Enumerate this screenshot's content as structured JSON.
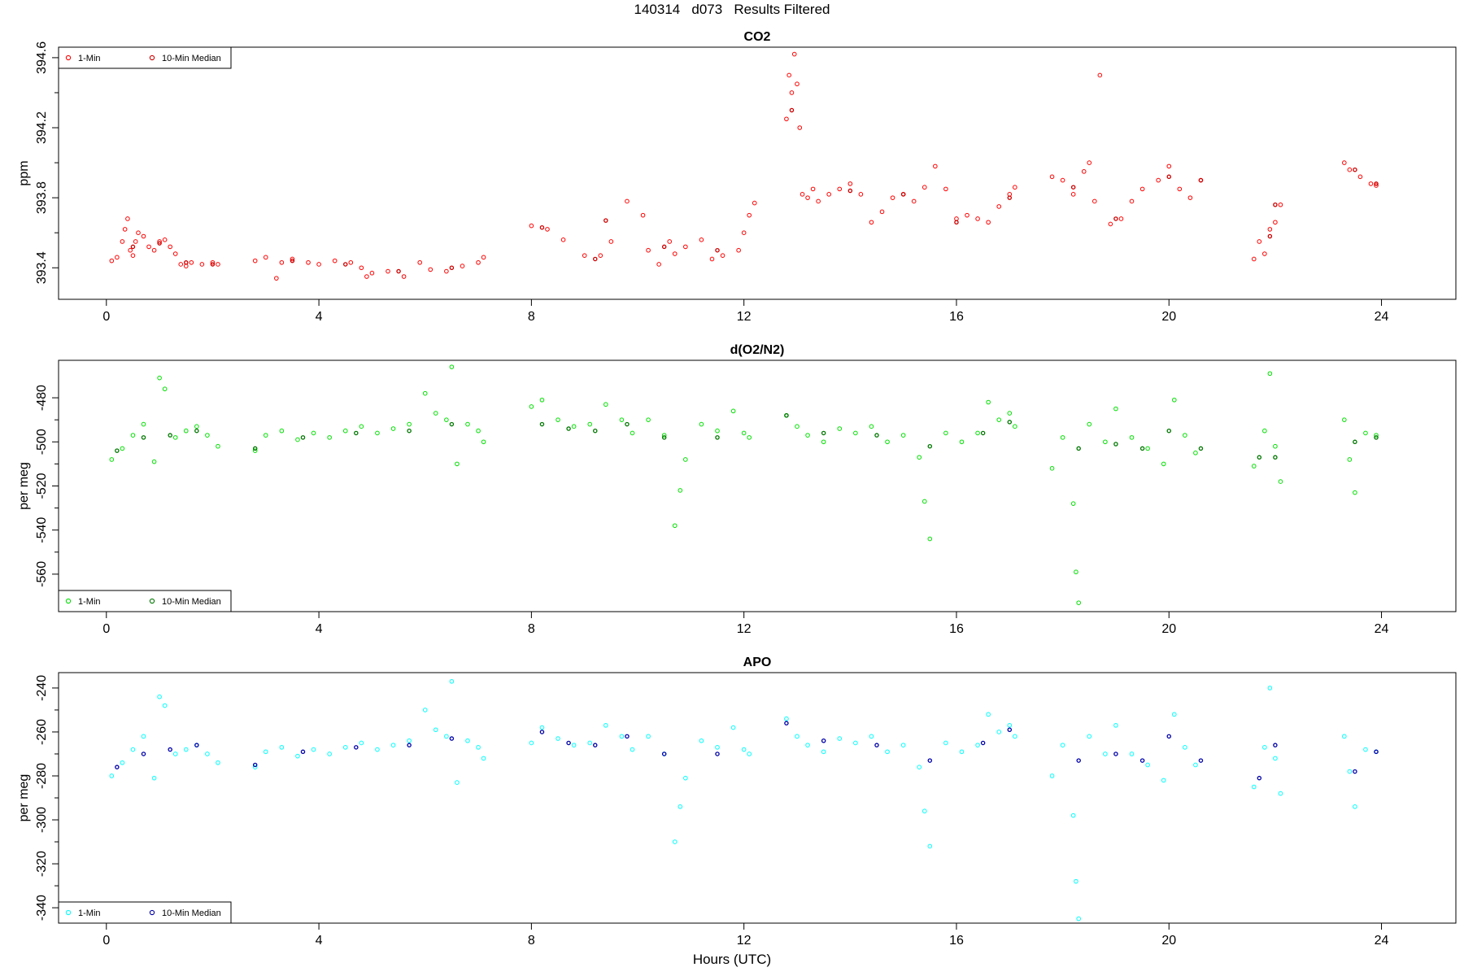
{
  "figure": {
    "title": "140314   d073   Results Filtered",
    "xlabel": "Hours (UTC)"
  },
  "chart_data": [
    {
      "type": "scatter",
      "title": "CO2",
      "ylabel": "ppm",
      "xlim": [
        -0.9,
        25.4
      ],
      "ylim": [
        393.22,
        394.66
      ],
      "xticks": [
        0,
        4,
        8,
        12,
        16,
        20,
        24
      ],
      "yticks": [
        393.4,
        393.8,
        394.2,
        394.6
      ],
      "ytick_labels": [
        "393.4",
        "393.8",
        "394.2",
        "394.6"
      ],
      "legend": {
        "position": "top-left",
        "entries": [
          "1-Min",
          "10-Min Median"
        ]
      },
      "series": [
        {
          "name": "1-Min",
          "color": "#ff0000",
          "x": [
            0.1,
            0.2,
            0.3,
            0.35,
            0.4,
            0.45,
            0.5,
            0.55,
            0.6,
            0.7,
            0.8,
            0.9,
            1.0,
            1.1,
            1.2,
            1.3,
            1.4,
            1.5,
            1.6,
            1.8,
            2.0,
            2.1,
            2.8,
            3.0,
            3.2,
            3.3,
            3.5,
            3.8,
            4.0,
            4.3,
            4.6,
            4.8,
            4.9,
            5.0,
            5.3,
            5.6,
            5.9,
            6.1,
            6.4,
            6.7,
            7.0,
            7.1,
            8.0,
            8.3,
            8.6,
            9.0,
            9.3,
            9.5,
            9.8,
            10.1,
            10.2,
            10.4,
            10.6,
            10.7,
            10.9,
            11.2,
            11.4,
            11.6,
            11.9,
            12.0,
            12.1,
            12.2,
            12.8,
            12.85,
            12.9,
            12.95,
            13.0,
            13.05,
            13.1,
            13.2,
            13.3,
            13.4,
            13.6,
            13.8,
            14.0,
            14.2,
            14.4,
            14.6,
            14.8,
            15.0,
            15.2,
            15.4,
            15.6,
            15.8,
            16.0,
            16.2,
            16.4,
            16.6,
            16.8,
            17.0,
            17.1,
            17.8,
            18.0,
            18.2,
            18.4,
            18.5,
            18.6,
            18.7,
            18.9,
            19.1,
            19.3,
            19.5,
            19.8,
            20.0,
            20.2,
            20.4,
            20.6,
            21.6,
            21.7,
            21.8,
            21.9,
            22.0,
            22.1,
            23.3,
            23.4,
            23.6,
            23.8,
            23.9
          ],
          "y": [
            393.44,
            393.46,
            393.55,
            393.62,
            393.68,
            393.5,
            393.47,
            393.55,
            393.6,
            393.58,
            393.52,
            393.5,
            393.55,
            393.56,
            393.52,
            393.48,
            393.42,
            393.41,
            393.43,
            393.42,
            393.43,
            393.42,
            393.44,
            393.46,
            393.34,
            393.43,
            393.45,
            393.43,
            393.42,
            393.44,
            393.43,
            393.4,
            393.35,
            393.37,
            393.38,
            393.35,
            393.43,
            393.39,
            393.38,
            393.41,
            393.43,
            393.46,
            393.64,
            393.62,
            393.56,
            393.47,
            393.47,
            393.55,
            393.78,
            393.7,
            393.5,
            393.42,
            393.55,
            393.48,
            393.52,
            393.56,
            393.45,
            393.47,
            393.5,
            393.6,
            393.7,
            393.77,
            394.25,
            394.5,
            394.4,
            394.62,
            394.45,
            394.2,
            393.82,
            393.8,
            393.85,
            393.78,
            393.82,
            393.85,
            393.88,
            393.82,
            393.66,
            393.72,
            393.8,
            393.82,
            393.78,
            393.86,
            393.98,
            393.85,
            393.68,
            393.7,
            393.68,
            393.66,
            393.75,
            393.82,
            393.86,
            393.92,
            393.9,
            393.82,
            393.95,
            394.0,
            393.78,
            394.5,
            393.65,
            393.68,
            393.78,
            393.85,
            393.9,
            393.98,
            393.85,
            393.8,
            393.9,
            393.45,
            393.55,
            393.48,
            393.62,
            393.66,
            393.76,
            394.0,
            393.96,
            393.92,
            393.88,
            393.87
          ]
        },
        {
          "name": "10-Min Median",
          "color": "#cc0000",
          "x": [
            0.5,
            1.0,
            1.5,
            2.0,
            3.5,
            4.5,
            5.5,
            6.5,
            8.2,
            9.2,
            9.4,
            10.5,
            11.5,
            12.9,
            14.0,
            15.0,
            16.0,
            17.0,
            18.2,
            19.0,
            20.0,
            20.6,
            21.9,
            22.0,
            23.5,
            23.9
          ],
          "y": [
            393.52,
            393.54,
            393.43,
            393.42,
            393.44,
            393.42,
            393.38,
            393.4,
            393.63,
            393.45,
            393.67,
            393.52,
            393.5,
            394.3,
            393.84,
            393.82,
            393.66,
            393.8,
            393.86,
            393.68,
            393.92,
            393.9,
            393.58,
            393.76,
            393.96,
            393.88
          ]
        }
      ]
    },
    {
      "type": "scatter",
      "title": "d(O2/N2)",
      "ylabel": "per meg",
      "xlim": [
        -0.9,
        25.4
      ],
      "ylim": [
        -577,
        -463
      ],
      "xticks": [
        0,
        4,
        8,
        12,
        16,
        20,
        24
      ],
      "yticks": [
        -560,
        -540,
        -520,
        -500,
        -480
      ],
      "ytick_labels": [
        "-560",
        "-540",
        "-520",
        "-500",
        "-480"
      ],
      "legend": {
        "position": "bottom-left",
        "entries": [
          "1-Min",
          "10-Min Median"
        ]
      },
      "series": [
        {
          "name": "1-Min",
          "color": "#00e000",
          "x": [
            0.1,
            0.3,
            0.5,
            0.7,
            0.9,
            1.0,
            1.1,
            1.3,
            1.5,
            1.7,
            1.9,
            2.1,
            2.8,
            3.0,
            3.3,
            3.6,
            3.9,
            4.2,
            4.5,
            4.8,
            5.1,
            5.4,
            5.7,
            6.0,
            6.2,
            6.4,
            6.5,
            6.6,
            6.8,
            7.0,
            7.1,
            8.0,
            8.2,
            8.5,
            8.8,
            9.1,
            9.4,
            9.7,
            9.9,
            10.2,
            10.5,
            10.7,
            10.8,
            10.9,
            11.2,
            11.5,
            11.8,
            12.0,
            12.1,
            12.8,
            13.0,
            13.2,
            13.5,
            13.8,
            14.1,
            14.4,
            14.7,
            15.0,
            15.3,
            15.4,
            15.5,
            15.8,
            16.1,
            16.4,
            16.6,
            16.8,
            17.0,
            17.1,
            17.8,
            18.0,
            18.2,
            18.25,
            18.3,
            18.5,
            18.8,
            19.0,
            19.3,
            19.6,
            19.9,
            20.1,
            20.3,
            20.5,
            21.6,
            21.8,
            21.9,
            22.0,
            22.1,
            23.3,
            23.4,
            23.5,
            23.7,
            23.9
          ],
          "y": [
            -508,
            -503,
            -497,
            -492,
            -509,
            -471,
            -476,
            -498,
            -495,
            -493,
            -497,
            -502,
            -504,
            -497,
            -495,
            -499,
            -496,
            -498,
            -495,
            -493,
            -496,
            -494,
            -492,
            -478,
            -487,
            -490,
            -466,
            -510,
            -492,
            -495,
            -500,
            -484,
            -481,
            -490,
            -493,
            -492,
            -483,
            -490,
            -496,
            -490,
            -497,
            -538,
            -522,
            -508,
            -492,
            -495,
            -486,
            -496,
            -498,
            -488,
            -493,
            -497,
            -500,
            -494,
            -496,
            -493,
            -500,
            -497,
            -507,
            -527,
            -544,
            -496,
            -500,
            -496,
            -482,
            -490,
            -487,
            -493,
            -512,
            -498,
            -528,
            -559,
            -573,
            -492,
            -500,
            -485,
            -498,
            -503,
            -510,
            -481,
            -497,
            -505,
            -511,
            -495,
            -469,
            -502,
            -518,
            -490,
            -508,
            -523,
            -496,
            -497
          ]
        },
        {
          "name": "10-Min Median",
          "color": "#007700",
          "x": [
            0.2,
            0.7,
            1.2,
            1.7,
            2.8,
            3.7,
            4.7,
            5.7,
            6.5,
            8.2,
            8.7,
            9.2,
            9.8,
            10.5,
            11.5,
            12.8,
            13.5,
            14.5,
            15.5,
            16.5,
            17.0,
            18.3,
            19.0,
            19.5,
            20.0,
            20.6,
            21.7,
            22.0,
            23.5,
            23.9
          ],
          "y": [
            -504,
            -498,
            -497,
            -495,
            -503,
            -498,
            -496,
            -495,
            -492,
            -492,
            -494,
            -495,
            -492,
            -498,
            -498,
            -488,
            -496,
            -497,
            -502,
            -496,
            -491,
            -503,
            -501,
            -503,
            -495,
            -503,
            -507,
            -507,
            -500,
            -498
          ]
        }
      ]
    },
    {
      "type": "scatter",
      "title": "APO",
      "ylabel": "per meg",
      "xlim": [
        -0.9,
        25.4
      ],
      "ylim": [
        -347,
        -233
      ],
      "xticks": [
        0,
        4,
        8,
        12,
        16,
        20,
        24
      ],
      "yticks": [
        -340,
        -320,
        -300,
        -280,
        -260,
        -240
      ],
      "ytick_labels": [
        "-340",
        "-320",
        "-300",
        "-280",
        "-260",
        "-240"
      ],
      "legend": {
        "position": "bottom-left",
        "entries": [
          "1-Min",
          "10-Min Median"
        ]
      },
      "series": [
        {
          "name": "1-Min",
          "color": "#00ffff",
          "x": [
            0.1,
            0.3,
            0.5,
            0.7,
            0.9,
            1.0,
            1.1,
            1.3,
            1.5,
            1.7,
            1.9,
            2.1,
            2.8,
            3.0,
            3.3,
            3.6,
            3.9,
            4.2,
            4.5,
            4.8,
            5.1,
            5.4,
            5.7,
            6.0,
            6.2,
            6.4,
            6.5,
            6.6,
            6.8,
            7.0,
            7.1,
            8.0,
            8.2,
            8.5,
            8.8,
            9.1,
            9.4,
            9.7,
            9.9,
            10.2,
            10.5,
            10.7,
            10.8,
            10.9,
            11.2,
            11.5,
            11.8,
            12.0,
            12.1,
            12.8,
            13.0,
            13.2,
            13.5,
            13.8,
            14.1,
            14.4,
            14.7,
            15.0,
            15.3,
            15.4,
            15.5,
            15.8,
            16.1,
            16.4,
            16.6,
            16.8,
            17.0,
            17.1,
            17.8,
            18.0,
            18.2,
            18.25,
            18.3,
            18.5,
            18.8,
            19.0,
            19.3,
            19.6,
            19.9,
            20.1,
            20.3,
            20.5,
            21.6,
            21.8,
            21.9,
            22.0,
            22.1,
            23.3,
            23.4,
            23.5,
            23.7,
            23.9
          ],
          "y": [
            -280,
            -274,
            -268,
            -262,
            -281,
            -244,
            -248,
            -270,
            -268,
            -266,
            -270,
            -274,
            -276,
            -269,
            -267,
            -271,
            -268,
            -270,
            -267,
            -265,
            -268,
            -266,
            -264,
            -250,
            -259,
            -262,
            -237,
            -283,
            -264,
            -267,
            -272,
            -265,
            -258,
            -263,
            -266,
            -265,
            -257,
            -262,
            -268,
            -262,
            -270,
            -310,
            -294,
            -281,
            -264,
            -267,
            -258,
            -268,
            -270,
            -254,
            -262,
            -266,
            -269,
            -263,
            -265,
            -262,
            -269,
            -266,
            -276,
            -296,
            -312,
            -265,
            -269,
            -266,
            -252,
            -260,
            -257,
            -262,
            -280,
            -266,
            -298,
            -328,
            -345,
            -262,
            -270,
            -257,
            -270,
            -275,
            -282,
            -252,
            -267,
            -275,
            -285,
            -267,
            -240,
            -272,
            -288,
            -262,
            -278,
            -294,
            -268,
            -269
          ]
        },
        {
          "name": "10-Min Median",
          "color": "#0000aa",
          "x": [
            0.2,
            0.7,
            1.2,
            1.7,
            2.8,
            3.7,
            4.7,
            5.7,
            6.5,
            8.2,
            8.7,
            9.2,
            9.8,
            10.5,
            11.5,
            12.8,
            13.5,
            14.5,
            15.5,
            16.5,
            17.0,
            18.3,
            19.0,
            19.5,
            20.0,
            20.6,
            21.7,
            22.0,
            23.5,
            23.9
          ],
          "y": [
            -276,
            -270,
            -268,
            -266,
            -275,
            -269,
            -267,
            -266,
            -263,
            -260,
            -265,
            -266,
            -262,
            -270,
            -270,
            -256,
            -264,
            -266,
            -273,
            -265,
            -259,
            -273,
            -270,
            -273,
            -262,
            -273,
            -281,
            -266,
            -278,
            -269
          ]
        }
      ]
    }
  ]
}
